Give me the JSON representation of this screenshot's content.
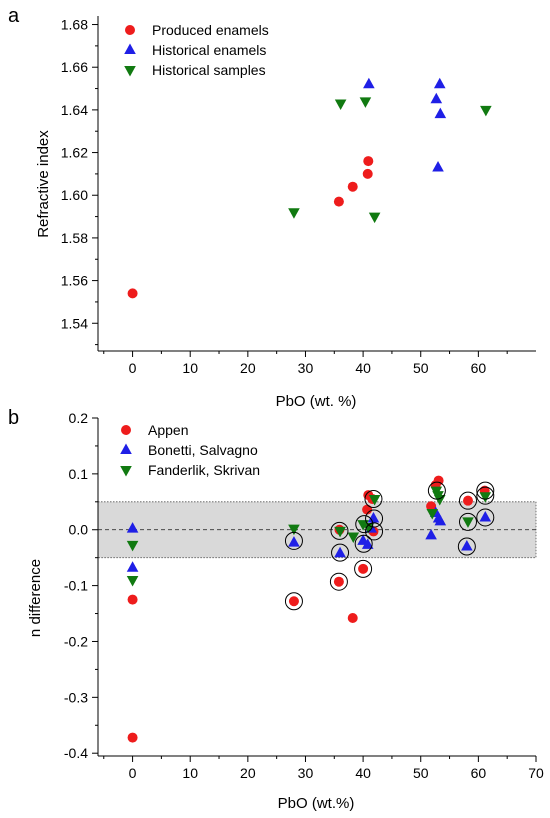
{
  "chart_data": [
    {
      "panel": "a",
      "type": "scatter",
      "xlabel": "PbO (wt. %)",
      "ylabel": "Refractive index",
      "xlim": [
        -6,
        70
      ],
      "ylim": [
        1.527,
        1.684
      ],
      "xticks": [
        0,
        10,
        20,
        30,
        40,
        50,
        60
      ],
      "yticks": [
        1.54,
        1.56,
        1.58,
        1.6,
        1.62,
        1.64,
        1.66,
        1.68
      ],
      "xtick_labels": [
        "0",
        "10",
        "20",
        "30",
        "40",
        "50",
        "60"
      ],
      "ytick_labels": [
        "1.54",
        "1.56",
        "1.58",
        "1.60",
        "1.62",
        "1.64",
        "1.66",
        "1.68"
      ],
      "legend_position": "top-left",
      "series": [
        {
          "name": "Produced enamels",
          "marker": "circle",
          "color": "#ee1c1c",
          "points": [
            [
              0,
              1.554
            ],
            [
              35.8,
              1.597
            ],
            [
              38.2,
              1.604
            ],
            [
              40.8,
              1.61
            ],
            [
              40.9,
              1.616
            ]
          ]
        },
        {
          "name": "Historical enamels",
          "marker": "triangle-up",
          "color": "#1f1fe6",
          "points": [
            [
              41.0,
              1.652
            ],
            [
              52.7,
              1.645
            ],
            [
              53.3,
              1.652
            ],
            [
              53.4,
              1.638
            ],
            [
              53.0,
              1.613
            ]
          ]
        },
        {
          "name": "Historical samples",
          "marker": "triangle-down",
          "color": "#117a11",
          "points": [
            [
              28.0,
              1.592
            ],
            [
              36.1,
              1.643
            ],
            [
              40.4,
              1.644
            ],
            [
              42.0,
              1.59
            ],
            [
              61.3,
              1.64
            ]
          ]
        }
      ]
    },
    {
      "panel": "b",
      "type": "scatter",
      "xlabel": "PbO (wt.%)",
      "ylabel": "n difference",
      "xlim": [
        -6,
        70
      ],
      "ylim": [
        -0.405,
        0.2
      ],
      "xticks": [
        0,
        10,
        20,
        30,
        40,
        50,
        60,
        70
      ],
      "yticks": [
        -0.4,
        -0.3,
        -0.2,
        -0.1,
        0.0,
        0.1,
        0.2
      ],
      "xtick_labels": [
        "0",
        "10",
        "20",
        "30",
        "40",
        "50",
        "60",
        "70"
      ],
      "ytick_labels": [
        "-0.4",
        "-0.3",
        "-0.2",
        "-0.1",
        "0.0",
        "0.1",
        "0.2"
      ],
      "shaded_band": [
        -0.05,
        0.05
      ],
      "reference_line": 0.0,
      "legend_position": "top-left",
      "series": [
        {
          "name": "Appen",
          "marker": "circle",
          "color": "#ee1c1c",
          "points": [
            [
              0,
              -0.125
            ],
            [
              0,
              -0.372
            ],
            [
              28.0,
              -0.128
            ],
            [
              35.8,
              -0.093
            ],
            [
              35.9,
              0.0
            ],
            [
              38.2,
              -0.158
            ],
            [
              40.0,
              -0.07
            ],
            [
              40.7,
              0.036
            ],
            [
              40.9,
              0.062
            ],
            [
              41.8,
              -0.003
            ],
            [
              41.6,
              0.055
            ],
            [
              51.8,
              0.042
            ],
            [
              52.6,
              0.08
            ],
            [
              53.1,
              0.088
            ],
            [
              58.2,
              0.052
            ],
            [
              61.1,
              0.07
            ]
          ]
        },
        {
          "name": "Bonetti, Salvagno",
          "marker": "triangle-up",
          "color": "#1f1fe6",
          "points": [
            [
              0,
              0.002
            ],
            [
              0,
              -0.068
            ],
            [
              28.0,
              -0.023
            ],
            [
              36.0,
              -0.042
            ],
            [
              40.0,
              -0.02
            ],
            [
              40.8,
              -0.027
            ],
            [
              41.8,
              0.02
            ],
            [
              41.4,
              0.002
            ],
            [
              51.8,
              -0.01
            ],
            [
              52.6,
              0.03
            ],
            [
              53.1,
              0.02
            ],
            [
              53.4,
              0.015
            ],
            [
              58.0,
              -0.03
            ],
            [
              61.2,
              0.022
            ]
          ]
        },
        {
          "name": "Fanderlik, Skrivan",
          "marker": "triangle-down",
          "color": "#117a11",
          "points": [
            [
              0,
              -0.027
            ],
            [
              0,
              -0.09
            ],
            [
              28.0,
              0.002
            ],
            [
              36.0,
              -0.002
            ],
            [
              38.3,
              -0.012
            ],
            [
              40.0,
              0.01
            ],
            [
              40.9,
              0.005
            ],
            [
              42.0,
              0.055
            ],
            [
              52.0,
              0.03
            ],
            [
              52.7,
              0.07
            ],
            [
              53.0,
              0.062
            ],
            [
              53.3,
              0.055
            ],
            [
              58.2,
              0.015
            ],
            [
              61.2,
              0.06
            ]
          ]
        }
      ],
      "circled_points": [
        [
          28.0,
          -0.128
        ],
        [
          28.0,
          -0.02
        ],
        [
          35.8,
          -0.093
        ],
        [
          35.9,
          -0.002
        ],
        [
          36.0,
          -0.041
        ],
        [
          40.0,
          -0.07
        ],
        [
          40.1,
          -0.025
        ],
        [
          40.2,
          0.01
        ],
        [
          41.9,
          -0.003
        ],
        [
          41.9,
          0.02
        ],
        [
          41.8,
          0.055
        ],
        [
          52.8,
          0.07
        ],
        [
          58.2,
          0.052
        ],
        [
          58.2,
          0.014
        ],
        [
          58.0,
          -0.03
        ],
        [
          61.2,
          0.07
        ],
        [
          61.2,
          0.061
        ],
        [
          61.2,
          0.022
        ]
      ]
    }
  ]
}
